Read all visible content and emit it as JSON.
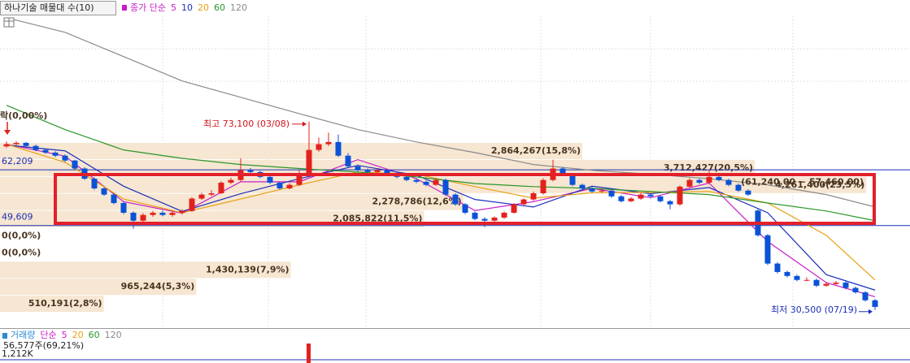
{
  "chart_data": {
    "type": "candlestick",
    "title": "하나기술 매물대 수(10)",
    "ma_title": "종가 단순",
    "ylim": [
      26600,
      97300
    ],
    "up_color": "#e3211c",
    "down_color": "#0a52d6",
    "candles": [
      [
        67500,
        68600,
        67200,
        68000
      ],
      [
        68000,
        68700,
        67700,
        68300
      ],
      [
        68300,
        68500,
        67300,
        67600
      ],
      [
        67600,
        67900,
        66400,
        66700
      ],
      [
        66700,
        67000,
        65800,
        66100
      ],
      [
        66100,
        66400,
        65100,
        65400
      ],
      [
        65400,
        65700,
        64000,
        64300
      ],
      [
        64300,
        64500,
        62200,
        62500
      ],
      [
        62500,
        62800,
        59900,
        60200
      ],
      [
        60200,
        60500,
        57700,
        58000
      ],
      [
        58000,
        58300,
        56300,
        56600
      ],
      [
        56600,
        56900,
        54400,
        54700
      ],
      [
        54700,
        55000,
        52200,
        52500
      ],
      [
        52500,
        52800,
        48900,
        50700
      ],
      [
        50700,
        52400,
        50500,
        52000
      ],
      [
        52000,
        52900,
        51600,
        52500
      ],
      [
        52500,
        53000,
        51700,
        52000
      ],
      [
        52000,
        52800,
        51600,
        52500
      ],
      [
        52500,
        53300,
        52100,
        52900
      ],
      [
        52900,
        56000,
        52700,
        55700
      ],
      [
        55700,
        57000,
        55400,
        56600
      ],
      [
        56600,
        57600,
        56300,
        56900
      ],
      [
        56900,
        59600,
        56700,
        59300
      ],
      [
        59300,
        60400,
        59000,
        59900
      ],
      [
        59900,
        64800,
        59600,
        62100
      ],
      [
        62100,
        62600,
        61300,
        61700
      ],
      [
        61700,
        62000,
        60300,
        60600
      ],
      [
        60600,
        60900,
        59000,
        59300
      ],
      [
        59300,
        59600,
        57700,
        58000
      ],
      [
        58000,
        59200,
        57800,
        58800
      ],
      [
        58800,
        62200,
        58500,
        61200
      ],
      [
        61200,
        73100,
        60800,
        66700
      ],
      [
        66700,
        69500,
        66300,
        68000
      ],
      [
        68000,
        70600,
        67600,
        68500
      ],
      [
        68500,
        70200,
        65100,
        65400
      ],
      [
        65400,
        66000,
        62700,
        63000
      ],
      [
        63000,
        63400,
        61800,
        62100
      ],
      [
        62100,
        62500,
        61400,
        61700
      ],
      [
        61700,
        62600,
        61300,
        62100
      ],
      [
        62100,
        62400,
        60900,
        61200
      ],
      [
        61200,
        61500,
        60300,
        60600
      ],
      [
        60600,
        60900,
        59600,
        59900
      ],
      [
        59900,
        60300,
        59200,
        59500
      ],
      [
        59500,
        59800,
        58500,
        58800
      ],
      [
        58800,
        60300,
        58600,
        59900
      ],
      [
        59900,
        60200,
        56300,
        56600
      ],
      [
        56600,
        56900,
        54100,
        54400
      ],
      [
        54400,
        54700,
        52200,
        52500
      ],
      [
        52500,
        52800,
        50800,
        51100
      ],
      [
        51100,
        51500,
        49200,
        50700
      ],
      [
        50700,
        51700,
        50400,
        51400
      ],
      [
        51400,
        52800,
        51100,
        52500
      ],
      [
        52500,
        54700,
        52300,
        54400
      ],
      [
        54400,
        55800,
        54100,
        55500
      ],
      [
        55500,
        57300,
        55200,
        56900
      ],
      [
        56900,
        60300,
        56600,
        59900
      ],
      [
        59900,
        64500,
        59600,
        62500
      ],
      [
        62500,
        62800,
        60900,
        61200
      ],
      [
        61200,
        61500,
        58500,
        58800
      ],
      [
        58800,
        59100,
        57700,
        58000
      ],
      [
        58000,
        58300,
        57000,
        57300
      ],
      [
        57300,
        58000,
        57000,
        57500
      ],
      [
        57500,
        57800,
        55900,
        56200
      ],
      [
        56200,
        56500,
        54800,
        55100
      ],
      [
        55100,
        56000,
        54900,
        55700
      ],
      [
        55700,
        57000,
        55400,
        56600
      ],
      [
        56600,
        56900,
        55900,
        56200
      ],
      [
        56200,
        56500,
        54800,
        55100
      ],
      [
        55100,
        55400,
        53300,
        54400
      ],
      [
        54400,
        58700,
        54100,
        58400
      ],
      [
        58400,
        60300,
        58100,
        59900
      ],
      [
        59900,
        60200,
        59000,
        59300
      ],
      [
        59300,
        62300,
        59000,
        60600
      ],
      [
        60600,
        60900,
        59600,
        59900
      ],
      [
        59900,
        60200,
        58500,
        58800
      ],
      [
        58800,
        59100,
        57200,
        57500
      ],
      [
        57500,
        57800,
        56300,
        56600
      ],
      [
        53000,
        53300,
        47100,
        47400
      ],
      [
        47400,
        47700,
        40700,
        41000
      ],
      [
        41000,
        41300,
        38800,
        39100
      ],
      [
        39100,
        39400,
        37900,
        38200
      ],
      [
        38200,
        38500,
        37000,
        37300
      ],
      [
        37300,
        37900,
        37000,
        37300
      ],
      [
        37300,
        37600,
        35700,
        36000
      ],
      [
        36000,
        36800,
        35800,
        36400
      ],
      [
        36400,
        37100,
        36200,
        36700
      ],
      [
        36700,
        37000,
        35200,
        35500
      ],
      [
        35500,
        35800,
        34200,
        34500
      ],
      [
        34500,
        34800,
        32400,
        32700
      ],
      [
        32700,
        33000,
        30500,
        31200
      ]
    ],
    "ma_x": [
      0,
      6,
      12,
      18,
      24,
      30,
      36,
      42,
      48,
      54,
      60,
      66,
      72,
      78,
      84,
      89
    ],
    "series": [
      {
        "name": "5",
        "color": "#c81ec8",
        "values": [
          68000,
          65300,
          55000,
          52400,
          59500,
          59500,
          64500,
          60200,
          53000,
          55000,
          58000,
          55900,
          59200,
          46000,
          36700,
          33500
        ]
      },
      {
        "name": "10",
        "color": "#1c2fb8",
        "values": [
          67800,
          66500,
          58500,
          52800,
          56800,
          60200,
          63200,
          61000,
          55500,
          53800,
          58500,
          56800,
          58200,
          52500,
          38500,
          35000
        ]
      },
      {
        "name": "20",
        "color": "#e8a010",
        "values": [
          68000,
          63900,
          55600,
          52500,
          55600,
          58800,
          61700,
          61200,
          58400,
          55800,
          57000,
          57100,
          57300,
          54700,
          47400,
          37300
        ]
      },
      {
        "name": "60",
        "color": "#2a962a",
        "values": [
          76800,
          71300,
          66700,
          64800,
          63400,
          62500,
          61700,
          60600,
          59100,
          58400,
          58000,
          57300,
          56600,
          54700,
          52900,
          50700
        ]
      },
      {
        "name": "120",
        "color": "#8a8a8a",
        "values": [
          96600,
          93300,
          87800,
          82300,
          78600,
          74900,
          71300,
          68500,
          66100,
          63400,
          62100,
          61200,
          60200,
          58800,
          56600,
          53800
        ]
      }
    ],
    "volume_profile": {
      "xlim": [
        0,
        4476000
      ],
      "color": "#f6e6d2",
      "values": [
        2864267,
        3712427,
        4261400,
        2278786,
        2085822,
        0,
        0,
        1430139,
        965244,
        510191
      ],
      "labels": [
        "2,864,267(15,8%)",
        "3,712,427(20,5%)",
        "4,261,400(23,5%)",
        "2,278,786(12,6%)",
        "2,085,822(11,5%)",
        "0(0,0%)",
        "0(0,0%)",
        "1,430,139(7,9%)",
        "965,244(5,3%)",
        "510,191(2,8%)"
      ]
    },
    "top_label": "락(0,00%)",
    "price_lines": [
      {
        "value": 62209,
        "label": "62,209"
      },
      {
        "value": 49609,
        "label": "49,609"
      }
    ],
    "high": {
      "value": 73100,
      "label": "최고 73,100 (03/08)"
    },
    "low": {
      "value": 30500,
      "label": "최저 30,500 (07/19)"
    },
    "range": {
      "values": [
        61240,
        57460
      ],
      "label": "(61,240.00 ~ 57,460.00)"
    },
    "volume": {
      "title": "거래량",
      "ma_title": "단순",
      "ma": [
        {
          "name": "5",
          "color": "#c81ec8"
        },
        {
          "name": "20",
          "color": "#e8a010"
        },
        {
          "name": "60",
          "color": "#2a962a"
        },
        {
          "name": "120",
          "color": "#8a8a8a"
        }
      ],
      "info": "56,577주(69,21%)",
      "level_label": "1,212K"
    }
  }
}
